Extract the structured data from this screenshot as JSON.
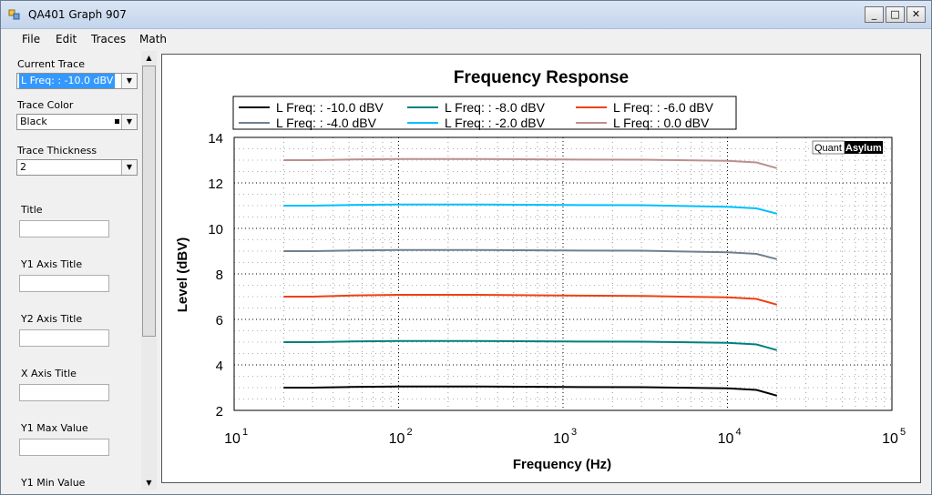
{
  "window": {
    "title": "QA401 Graph 907",
    "buttons": {
      "minimize": "_",
      "maximize": "□",
      "close": "✕"
    }
  },
  "menu": [
    {
      "label": "File"
    },
    {
      "label": "Edit"
    },
    {
      "label": "Traces"
    },
    {
      "label": "Math"
    }
  ],
  "panel": {
    "current_trace_label": "Current Trace",
    "current_trace_value": "L Freq: : -10.0 dBV",
    "trace_color_label": "Trace Color",
    "trace_color_value": "Black",
    "trace_thickness_label": "Trace Thickness",
    "trace_thickness_value": "2",
    "title_label": "Title",
    "y1_axis_title_label": "Y1 Axis Title",
    "y2_axis_title_label": "Y2 Axis Title",
    "x_axis_title_label": "X Axis Title",
    "y1_max_label": "Y1 Max Value",
    "y1_min_label": "Y1 Min Value"
  },
  "chart_data": {
    "type": "line",
    "title": "Frequency Response",
    "xlabel": "Frequency (Hz)",
    "ylabel": "Level (dBV)",
    "x_scale": "log",
    "xlim": [
      10,
      100000
    ],
    "ylim": [
      2,
      14
    ],
    "x_ticks": [
      10,
      100,
      1000,
      10000,
      100000
    ],
    "y_ticks": [
      2,
      4,
      6,
      8,
      10,
      12,
      14
    ],
    "grid": true,
    "legend_position": "top",
    "watermark": {
      "left": "Quant",
      "right": "Asylum"
    },
    "series": [
      {
        "name": "L Freq: : -10.0 dBV",
        "color": "#000000",
        "points": [
          [
            20,
            3.0
          ],
          [
            30,
            3.0
          ],
          [
            50,
            3.03
          ],
          [
            100,
            3.05
          ],
          [
            300,
            3.05
          ],
          [
            1000,
            3.03
          ],
          [
            3000,
            3.02
          ],
          [
            10000,
            2.97
          ],
          [
            15000,
            2.9
          ],
          [
            20000,
            2.65
          ]
        ]
      },
      {
        "name": "L Freq: : -8.0 dBV",
        "color": "#008080",
        "points": [
          [
            20,
            5.0
          ],
          [
            30,
            5.0
          ],
          [
            50,
            5.03
          ],
          [
            100,
            5.05
          ],
          [
            300,
            5.05
          ],
          [
            1000,
            5.03
          ],
          [
            3000,
            5.02
          ],
          [
            10000,
            4.97
          ],
          [
            15000,
            4.9
          ],
          [
            20000,
            4.65
          ]
        ]
      },
      {
        "name": "L Freq: : -6.0 dBV",
        "color": "#f04010",
        "points": [
          [
            20,
            7.0
          ],
          [
            30,
            7.0
          ],
          [
            50,
            7.05
          ],
          [
            100,
            7.08
          ],
          [
            300,
            7.08
          ],
          [
            1000,
            7.05
          ],
          [
            3000,
            7.03
          ],
          [
            10000,
            6.97
          ],
          [
            15000,
            6.9
          ],
          [
            20000,
            6.65
          ]
        ]
      },
      {
        "name": "L Freq: : -4.0 dBV",
        "color": "#708090",
        "points": [
          [
            20,
            9.0
          ],
          [
            30,
            9.0
          ],
          [
            50,
            9.03
          ],
          [
            100,
            9.05
          ],
          [
            300,
            9.05
          ],
          [
            1000,
            9.03
          ],
          [
            3000,
            9.02
          ],
          [
            10000,
            8.95
          ],
          [
            15000,
            8.88
          ],
          [
            20000,
            8.65
          ]
        ]
      },
      {
        "name": "L Freq: : -2.0 dBV",
        "color": "#00bfff",
        "points": [
          [
            20,
            11.0
          ],
          [
            30,
            11.0
          ],
          [
            50,
            11.03
          ],
          [
            100,
            11.05
          ],
          [
            300,
            11.05
          ],
          [
            1000,
            11.03
          ],
          [
            3000,
            11.02
          ],
          [
            10000,
            10.95
          ],
          [
            15000,
            10.88
          ],
          [
            20000,
            10.65
          ]
        ]
      },
      {
        "name": "L Freq: : 0.0 dBV",
        "color": "#bc8f8f",
        "points": [
          [
            20,
            13.0
          ],
          [
            30,
            13.0
          ],
          [
            50,
            13.03
          ],
          [
            100,
            13.05
          ],
          [
            300,
            13.05
          ],
          [
            1000,
            13.03
          ],
          [
            3000,
            13.02
          ],
          [
            10000,
            12.97
          ],
          [
            15000,
            12.9
          ],
          [
            20000,
            12.65
          ]
        ]
      }
    ]
  }
}
